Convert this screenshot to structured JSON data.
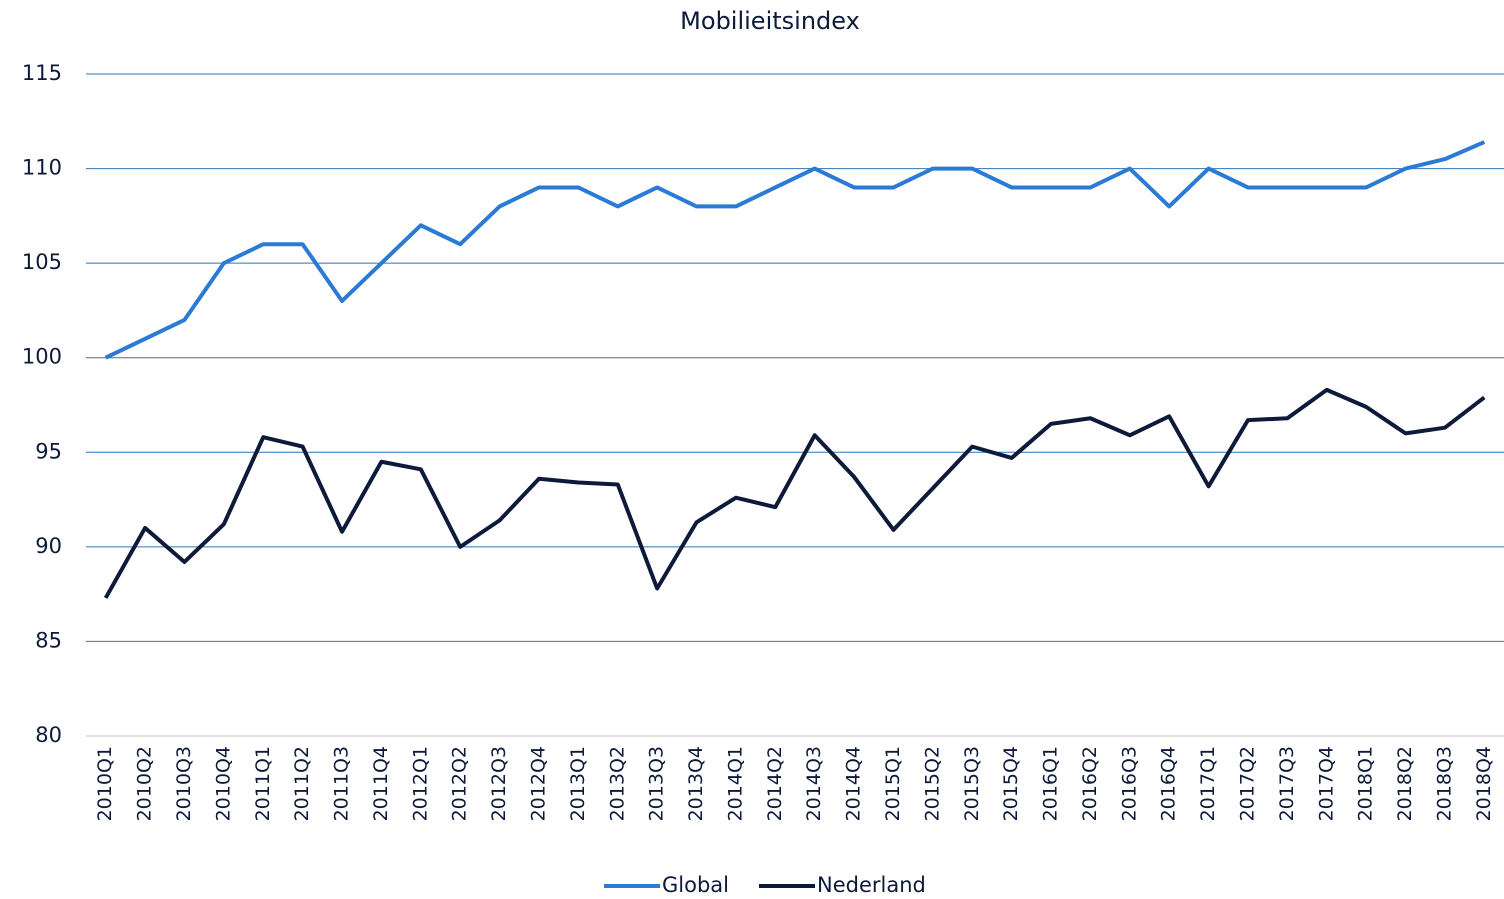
{
  "chart_data": {
    "type": "line",
    "title": "Mobilieitsindex",
    "categories": [
      "2010Q1",
      "2010Q2",
      "2010Q3",
      "2010Q4",
      "2011Q1",
      "2011Q2",
      "2011Q3",
      "2011Q4",
      "2012Q1",
      "2012Q2",
      "2012Q3",
      "2012Q4",
      "2013Q1",
      "2013Q2",
      "2013Q3",
      "2013Q4",
      "2014Q1",
      "2014Q2",
      "2014Q3",
      "2014Q4",
      "2015Q1",
      "2015Q2",
      "2015Q3",
      "2015Q4",
      "2016Q1",
      "2016Q2",
      "2016Q3",
      "2016Q4",
      "2017Q1",
      "2017Q2",
      "2017Q3",
      "2017Q4",
      "2018Q1",
      "2018Q2",
      "2018Q3",
      "2018Q4"
    ],
    "series": [
      {
        "name": "Global",
        "color": "#2a7ad6",
        "values": [
          100,
          101,
          102,
          105,
          106,
          106,
          103,
          105,
          107,
          106,
          108,
          109,
          109,
          108,
          109,
          108,
          108,
          109,
          110,
          109,
          109,
          110,
          110,
          109,
          109,
          109,
          110,
          108,
          110,
          109,
          109,
          109,
          109,
          110,
          110.5,
          111.4
        ]
      },
      {
        "name": "Nederland",
        "color": "#0d1a3a",
        "values": [
          87.3,
          91.0,
          89.2,
          91.2,
          95.8,
          95.3,
          90.8,
          94.5,
          94.1,
          90.0,
          91.4,
          93.6,
          93.4,
          93.3,
          87.8,
          91.3,
          92.6,
          92.1,
          95.9,
          93.7,
          90.9,
          93.1,
          95.3,
          94.7,
          96.5,
          96.8,
          95.9,
          96.9,
          93.2,
          96.7,
          96.8,
          98.3,
          97.4,
          96.0,
          96.3,
          97.9
        ]
      }
    ],
    "ylim": [
      80,
      115
    ],
    "yticks": [
      80,
      85,
      90,
      95,
      100,
      105,
      110,
      115
    ],
    "grid": true,
    "legend": "bottom"
  }
}
